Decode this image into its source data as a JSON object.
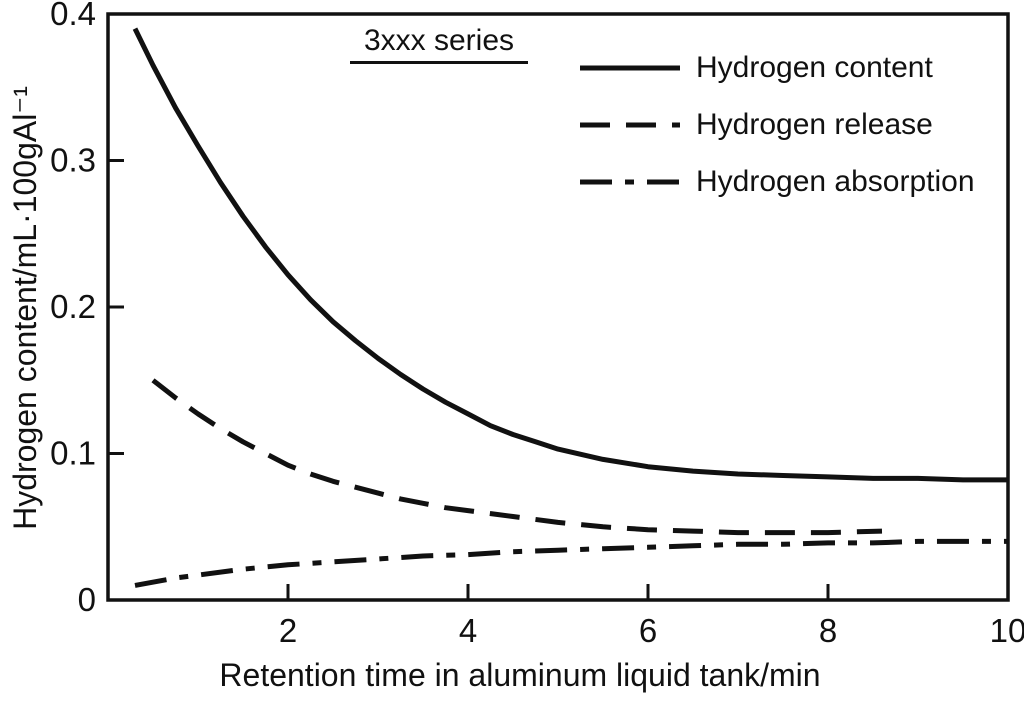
{
  "chart_data": {
    "type": "line",
    "annotation": "3xxx series",
    "xlabel": "Retention time in aluminum liquid tank/min",
    "ylabel": "Hydrogen content/mL·100gAl⁻¹",
    "xlim": [
      0,
      10
    ],
    "ylim": [
      0,
      0.4
    ],
    "xticks": [
      2,
      4,
      6,
      8,
      10
    ],
    "yticks": [
      0,
      0.1,
      0.2,
      0.3,
      0.4
    ],
    "ytick_labels": [
      "0",
      "0.1",
      "0.2",
      "0.3",
      "0.4"
    ],
    "grid": false,
    "legend_position": "top-right-inside",
    "line_color": "#111111",
    "series": [
      {
        "name": "Hydrogen content",
        "style": "solid",
        "points": [
          [
            0.3,
            0.39
          ],
          [
            0.5,
            0.365
          ],
          [
            0.75,
            0.336
          ],
          [
            1,
            0.31
          ],
          [
            1.25,
            0.285
          ],
          [
            1.5,
            0.262
          ],
          [
            1.75,
            0.241
          ],
          [
            2,
            0.222
          ],
          [
            2.25,
            0.205
          ],
          [
            2.5,
            0.19
          ],
          [
            2.75,
            0.177
          ],
          [
            3,
            0.165
          ],
          [
            3.25,
            0.154
          ],
          [
            3.5,
            0.144
          ],
          [
            3.75,
            0.135
          ],
          [
            4,
            0.127
          ],
          [
            4.25,
            0.119
          ],
          [
            4.5,
            0.113
          ],
          [
            4.75,
            0.108
          ],
          [
            5,
            0.103
          ],
          [
            5.5,
            0.096
          ],
          [
            6,
            0.091
          ],
          [
            6.5,
            0.088
          ],
          [
            7,
            0.086
          ],
          [
            7.5,
            0.085
          ],
          [
            8,
            0.084
          ],
          [
            8.5,
            0.083
          ],
          [
            9,
            0.083
          ],
          [
            9.5,
            0.082
          ],
          [
            10,
            0.082
          ]
        ]
      },
      {
        "name": "Hydrogen release",
        "style": "dashed",
        "points": [
          [
            0.5,
            0.15
          ],
          [
            0.75,
            0.138
          ],
          [
            1,
            0.127
          ],
          [
            1.25,
            0.117
          ],
          [
            1.5,
            0.108
          ],
          [
            1.75,
            0.1
          ],
          [
            2,
            0.092
          ],
          [
            2.25,
            0.086
          ],
          [
            2.5,
            0.081
          ],
          [
            2.75,
            0.077
          ],
          [
            3,
            0.073
          ],
          [
            3.25,
            0.069
          ],
          [
            3.5,
            0.066
          ],
          [
            3.75,
            0.063
          ],
          [
            4,
            0.061
          ],
          [
            4.5,
            0.057
          ],
          [
            5,
            0.053
          ],
          [
            5.5,
            0.05
          ],
          [
            6,
            0.048
          ],
          [
            6.5,
            0.047
          ],
          [
            7,
            0.046
          ],
          [
            7.5,
            0.046
          ],
          [
            8,
            0.046
          ],
          [
            8.6,
            0.047
          ]
        ]
      },
      {
        "name": "Hydrogen absorption",
        "style": "dashdot",
        "points": [
          [
            0.3,
            0.01
          ],
          [
            0.75,
            0.015
          ],
          [
            1,
            0.017
          ],
          [
            1.5,
            0.021
          ],
          [
            2,
            0.024
          ],
          [
            2.5,
            0.026
          ],
          [
            3,
            0.028
          ],
          [
            3.5,
            0.03
          ],
          [
            4,
            0.031
          ],
          [
            4.5,
            0.033
          ],
          [
            5,
            0.034
          ],
          [
            5.5,
            0.035
          ],
          [
            6,
            0.036
          ],
          [
            6.5,
            0.037
          ],
          [
            7,
            0.038
          ],
          [
            7.5,
            0.038
          ],
          [
            8,
            0.039
          ],
          [
            8.5,
            0.039
          ],
          [
            9,
            0.04
          ],
          [
            9.5,
            0.04
          ],
          [
            10,
            0.04
          ]
        ]
      }
    ]
  }
}
